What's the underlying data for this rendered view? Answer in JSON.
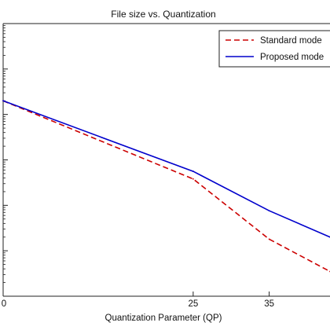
{
  "chart_data": {
    "type": "line",
    "title": "File size vs. Quantization",
    "xlabel": "Quantization Parameter (QP)",
    "ylabel": "",
    "xlim": [
      0,
      43
    ],
    "x_ticks": [
      0,
      25,
      35
    ],
    "x_tick_labels": [
      "0",
      "25",
      "35"
    ],
    "ylim": [
      1,
      1000000
    ],
    "y_scale": "log",
    "grid": false,
    "legend": "top-right",
    "series": [
      {
        "name": "Standard mode",
        "color": "#cc0000",
        "dash": "dashed",
        "x": [
          0,
          25,
          35,
          43
        ],
        "y": [
          20000,
          380,
          18,
          3.5
        ]
      },
      {
        "name": "Proposed mode",
        "color": "#0000cc",
        "dash": "solid",
        "x": [
          0,
          25,
          35,
          43
        ],
        "y": [
          20000,
          560,
          76,
          20
        ]
      }
    ]
  }
}
